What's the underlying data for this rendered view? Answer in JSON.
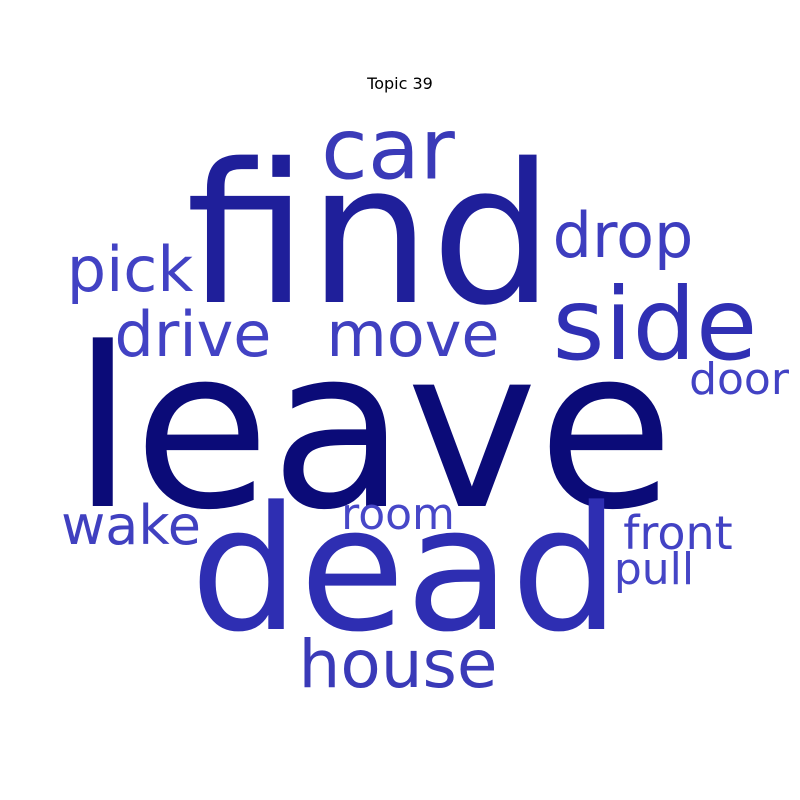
{
  "title": "Topic 39",
  "colors": {
    "darkest": "#0b0b78",
    "dark": "#1f1f9a",
    "medium": "#3535b8",
    "light": "#4242c4"
  },
  "words": [
    {
      "text": "leave",
      "weight": 1.0,
      "color": "#0b0b78"
    },
    {
      "text": "find",
      "weight": 0.72,
      "color": "#1f1f9a"
    },
    {
      "text": "dead",
      "weight": 0.66,
      "color": "#2e2eb2"
    },
    {
      "text": "side",
      "weight": 0.4,
      "color": "#3030b4"
    },
    {
      "text": "car",
      "weight": 0.33,
      "color": "#3a3ab8"
    },
    {
      "text": "house",
      "weight": 0.26,
      "color": "#3a3ab8"
    },
    {
      "text": "drive",
      "weight": 0.24,
      "color": "#4242c4"
    },
    {
      "text": "move",
      "weight": 0.24,
      "color": "#4040c0"
    },
    {
      "text": "pick",
      "weight": 0.24,
      "color": "#4242c4"
    },
    {
      "text": "drop",
      "weight": 0.24,
      "color": "#3d3dbf"
    },
    {
      "text": "wake",
      "weight": 0.22,
      "color": "#4040c0"
    },
    {
      "text": "front",
      "weight": 0.18,
      "color": "#4242c4"
    },
    {
      "text": "room",
      "weight": 0.17,
      "color": "#4747c8"
    },
    {
      "text": "door",
      "weight": 0.17,
      "color": "#4242c4"
    },
    {
      "text": "pull",
      "weight": 0.17,
      "color": "#4545c6"
    }
  ]
}
